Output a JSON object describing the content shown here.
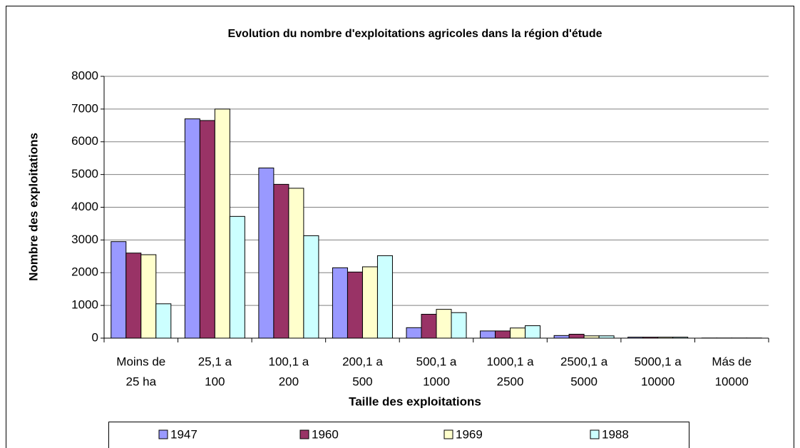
{
  "chart_data": {
    "type": "bar",
    "title": "Evolution du nombre d'exploitations agricoles dans la région d'étude",
    "xlabel": "Taille des exploitations",
    "ylabel": "Nombre des exploitations",
    "categories": [
      [
        "Moins de",
        "25 ha"
      ],
      [
        "25,1 a",
        "100"
      ],
      [
        "100,1 a",
        "200"
      ],
      [
        "200,1 a",
        "500"
      ],
      [
        "500,1 a",
        "1000"
      ],
      [
        "1000,1 a",
        "2500"
      ],
      [
        "2500,1 a",
        "5000"
      ],
      [
        "5000,1 a",
        "10000"
      ],
      [
        "Más de",
        "10000"
      ]
    ],
    "series": [
      {
        "name": "1947",
        "color": "#9999ff",
        "values": [
          2950,
          6700,
          5200,
          2150,
          320,
          220,
          80,
          30,
          5
        ]
      },
      {
        "name": "1960",
        "color": "#993366",
        "values": [
          2600,
          6650,
          4700,
          2020,
          730,
          220,
          120,
          30,
          5
        ]
      },
      {
        "name": "1969",
        "color": "#ffffcc",
        "values": [
          2550,
          7000,
          4580,
          2180,
          880,
          310,
          70,
          30,
          5
        ]
      },
      {
        "name": "1988",
        "color": "#ccffff",
        "values": [
          1050,
          3720,
          3130,
          2520,
          780,
          380,
          70,
          30,
          5
        ]
      }
    ],
    "ylim": [
      0,
      8000
    ],
    "yticks": [
      0,
      1000,
      2000,
      3000,
      4000,
      5000,
      6000,
      7000,
      8000
    ],
    "grid": true,
    "legend": "bottom"
  }
}
